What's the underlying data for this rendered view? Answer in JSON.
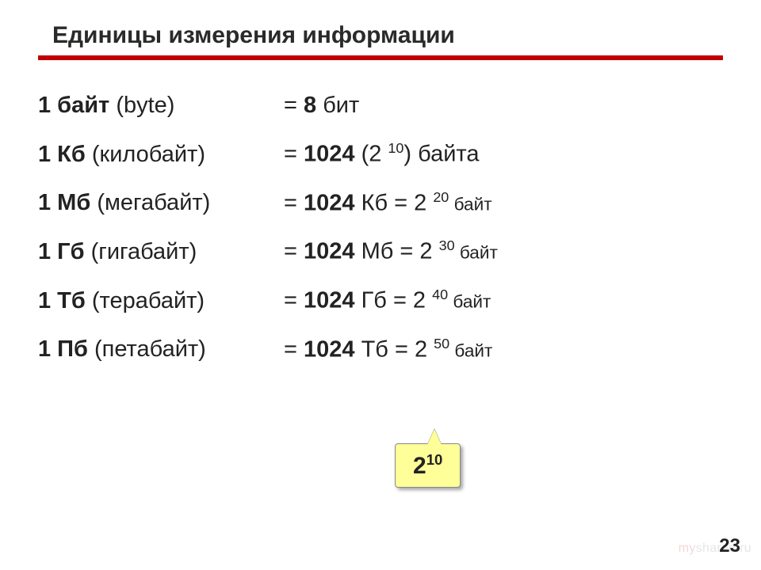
{
  "colors": {
    "rule": "#c00000",
    "callout_bg": "#ffff99",
    "callout_border": "#888888",
    "text": "#222222",
    "watermark_gray": "#e6e6e6",
    "watermark_red": "#f2d9d9"
  },
  "title": "Единицы измерения информации",
  "rows": [
    {
      "unit_bold": "1 байт",
      "unit_paren": " (byte)",
      "eq": "= ",
      "val_bold": "8",
      "val_rest": " бит"
    },
    {
      "unit_bold": "1 Кб",
      "unit_paren": " (килобайт)",
      "eq": "= ",
      "val_bold": "1024",
      "val_rest": " (2 ",
      "sup": "10",
      "tail": ") байта"
    },
    {
      "unit_bold": "1 Мб",
      "unit_paren": " (мегабайт)",
      "eq": "= ",
      "val_bold": "1024",
      "val_rest": " Кб = 2 ",
      "sup": "20",
      "tail_small": " байт"
    },
    {
      "unit_bold": "1 Гб",
      "unit_paren": " (гигабайт)",
      "eq": "= ",
      "val_bold": "1024",
      "val_rest": " Мб = 2 ",
      "sup": "30",
      "tail_small": " байт"
    },
    {
      "unit_bold": "1 Тб",
      "unit_paren": " (терабайт)",
      "eq": "= ",
      "val_bold": "1024",
      "val_rest": " Гб = 2 ",
      "sup": "40",
      "tail_small": " байт"
    },
    {
      "unit_bold": "1 Пб",
      "unit_paren": " (петабайт)",
      "eq": "= ",
      "val_bold": "1024",
      "val_rest": " Тб = 2 ",
      "sup": "50",
      "tail_small": " байт"
    }
  ],
  "callout": {
    "base": "2",
    "exp": "10"
  },
  "page_number": "23",
  "watermark": {
    "left": "my",
    "right": "shared.ru"
  }
}
